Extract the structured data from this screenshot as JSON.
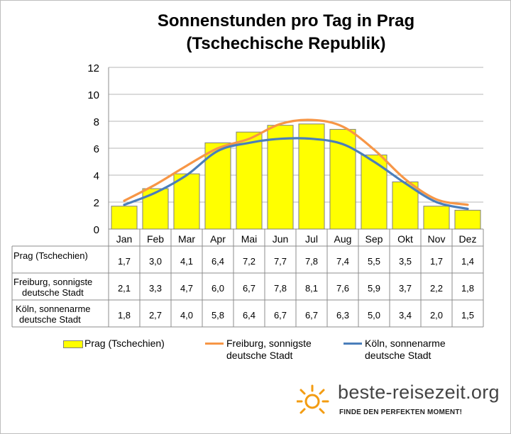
{
  "title": "Sonnenstunden pro Tag in Prag (Tschechische Republik)",
  "title_line1": "Sonnenstunden pro Tag in Prag",
  "title_line2": "(Tschechische Republik)",
  "chart_data": {
    "type": "bar",
    "categories": [
      "Jan",
      "Feb",
      "Mar",
      "Apr",
      "Mai",
      "Jun",
      "Jul",
      "Aug",
      "Sep",
      "Okt",
      "Nov",
      "Dez"
    ],
    "ylim": [
      0,
      12
    ],
    "yticks": [
      0,
      2,
      4,
      6,
      8,
      10,
      12
    ],
    "grid": true,
    "legend_position": "bottom",
    "series": [
      {
        "name": "Prag (Tschechien)",
        "type": "bar",
        "color": "#ffff00",
        "values": [
          1.7,
          3.0,
          4.1,
          6.4,
          7.2,
          7.7,
          7.8,
          7.4,
          5.5,
          3.5,
          1.7,
          1.4
        ]
      },
      {
        "name": "Freiburg, sonnigste deutsche Stadt",
        "type": "line",
        "color": "#f79646",
        "values": [
          2.1,
          3.3,
          4.7,
          6.0,
          6.7,
          7.8,
          8.1,
          7.6,
          5.9,
          3.7,
          2.2,
          1.8
        ]
      },
      {
        "name": "Köln, sonnenarme deutsche Stadt",
        "type": "line",
        "color": "#4a7ebb",
        "values": [
          1.8,
          2.7,
          4.0,
          5.8,
          6.4,
          6.7,
          6.7,
          6.3,
          5.0,
          3.4,
          2.0,
          1.5
        ]
      }
    ]
  },
  "table": {
    "rows": [
      {
        "label": "Prag (Tschechien)",
        "values": [
          "1,7",
          "3,0",
          "4,1",
          "6,4",
          "7,2",
          "7,7",
          "7,8",
          "7,4",
          "5,5",
          "3,5",
          "1,7",
          "1,4"
        ]
      },
      {
        "label": "Freiburg, sonnigste deutsche Stadt",
        "label_line1": "Freiburg, sonnigste",
        "label_line2": "deutsche Stadt",
        "values": [
          "2,1",
          "3,3",
          "4,7",
          "6,0",
          "6,7",
          "7,8",
          "8,1",
          "7,6",
          "5,9",
          "3,7",
          "2,2",
          "1,8"
        ]
      },
      {
        "label": "Köln, sonnenarme deutsche Stadt",
        "label_line1": "Köln, sonnenarme",
        "label_line2": "deutsche Stadt",
        "values": [
          "1,8",
          "2,7",
          "4,0",
          "5,8",
          "6,4",
          "6,7",
          "6,7",
          "6,3",
          "5,0",
          "3,4",
          "2,0",
          "1,5"
        ]
      }
    ]
  },
  "legend": {
    "prag": "Prag (Tschechien)",
    "freiburg_line1": "Freiburg, sonnigste",
    "freiburg_line2": "deutsche Stadt",
    "koeln_line1": "Köln, sonnenarme",
    "koeln_line2": "deutsche Stadt"
  },
  "brand": {
    "name": "beste-reisezeit.org",
    "tagline": "FINDE DEN PERFEKTEN MOMENT!",
    "accent_color": "#f39c12"
  }
}
